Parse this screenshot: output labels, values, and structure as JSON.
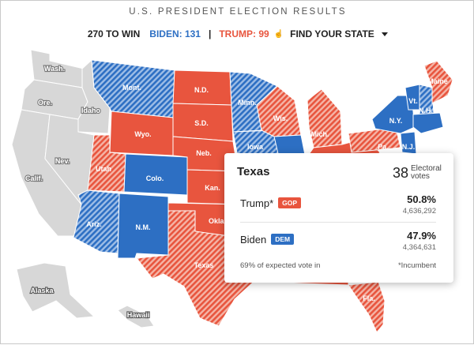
{
  "header": {
    "title": "U.S. PRESIDENT ELECTION RESULTS",
    "to_win": "270 TO WIN",
    "biden_label": "BIDEN: 131",
    "separator": "|",
    "trump_label": "TRUMP: 99",
    "find_state": "FIND YOUR STATE"
  },
  "colors": {
    "dem": "#2d6fc3",
    "gop": "#e8553e",
    "undecided": "#d7d7d7"
  },
  "map": {
    "states": [
      {
        "label": "Wash.",
        "status": "undecided"
      },
      {
        "label": "Ore.",
        "status": "undecided"
      },
      {
        "label": "Calif.",
        "status": "undecided"
      },
      {
        "label": "Idaho",
        "status": "undecided"
      },
      {
        "label": "Nev.",
        "status": "undecided"
      },
      {
        "label": "Mont.",
        "status": "leans-dem"
      },
      {
        "label": "Wyo.",
        "status": "called-gop"
      },
      {
        "label": "Utah",
        "status": "leans-gop"
      },
      {
        "label": "Colo.",
        "status": "called-dem"
      },
      {
        "label": "Ariz.",
        "status": "leans-dem"
      },
      {
        "label": "N.M.",
        "status": "called-dem"
      },
      {
        "label": "N.D.",
        "status": "called-gop"
      },
      {
        "label": "S.D.",
        "status": "called-gop"
      },
      {
        "label": "Neb.",
        "status": "called-gop"
      },
      {
        "label": "Kan.",
        "status": "called-gop"
      },
      {
        "label": "Okla.",
        "status": "called-gop"
      },
      {
        "label": "Texas",
        "status": "leans-gop"
      },
      {
        "label": "Minn.",
        "status": "leans-dem"
      },
      {
        "label": "Iowa",
        "status": "leans-dem"
      },
      {
        "label": "Wis.",
        "status": "leans-gop"
      },
      {
        "label": "Mich.",
        "status": "leans-gop"
      },
      {
        "label": "Pa.",
        "status": "leans-gop"
      },
      {
        "label": "N.Y.",
        "status": "called-dem"
      },
      {
        "label": "Vt.",
        "status": "called-dem"
      },
      {
        "label": "N.H.",
        "status": "leans-dem"
      },
      {
        "label": "Maine",
        "status": "leans-gop"
      },
      {
        "label": "N.J.",
        "status": "called-dem"
      },
      {
        "label": "Fla.",
        "status": "leans-gop"
      },
      {
        "label": "Alaska",
        "status": "undecided"
      },
      {
        "label": "Hawaii",
        "status": "undecided"
      }
    ]
  },
  "tooltip": {
    "state": "Texas",
    "electoral_votes": "38",
    "electoral_label": "Electoral votes",
    "candidates": [
      {
        "name": "Trump*",
        "party": "GOP",
        "pct": "50.8%",
        "votes": "4,636,292"
      },
      {
        "name": "Biden",
        "party": "DEM",
        "pct": "47.9%",
        "votes": "4,364,631"
      }
    ],
    "expected_vote": "69% of expected vote in",
    "incumbent_note": "*Incumbent"
  }
}
